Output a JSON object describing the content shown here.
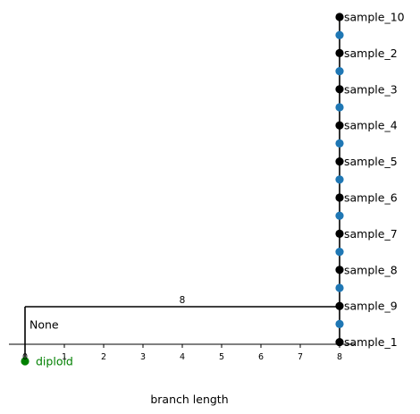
{
  "chart_data": {
    "type": "tree",
    "xlabel": "branch length",
    "xticks": [
      0,
      1,
      2,
      3,
      4,
      5,
      6,
      7,
      8
    ],
    "xlim": [
      -0.3,
      8.4
    ],
    "root": {
      "label": "diploid",
      "color": "#008000",
      "x": 0
    },
    "internal_node": {
      "label": "None",
      "x": 0
    },
    "edge": {
      "label": "8",
      "from_x": 0,
      "to_x": 8
    },
    "leaves": [
      {
        "label": "sample_10",
        "x": 8
      },
      {
        "label": "sample_2",
        "x": 8
      },
      {
        "label": "sample_3",
        "x": 8
      },
      {
        "label": "sample_4",
        "x": 8
      },
      {
        "label": "sample_5",
        "x": 8
      },
      {
        "label": "sample_6",
        "x": 8
      },
      {
        "label": "sample_7",
        "x": 8
      },
      {
        "label": "sample_8",
        "x": 8
      },
      {
        "label": "sample_9",
        "x": 8
      },
      {
        "label": "sample_1",
        "x": 8
      }
    ],
    "colors": {
      "leaf": "#000000",
      "internal": "#1f77b4",
      "root": "#008000",
      "line": "#000000"
    }
  }
}
